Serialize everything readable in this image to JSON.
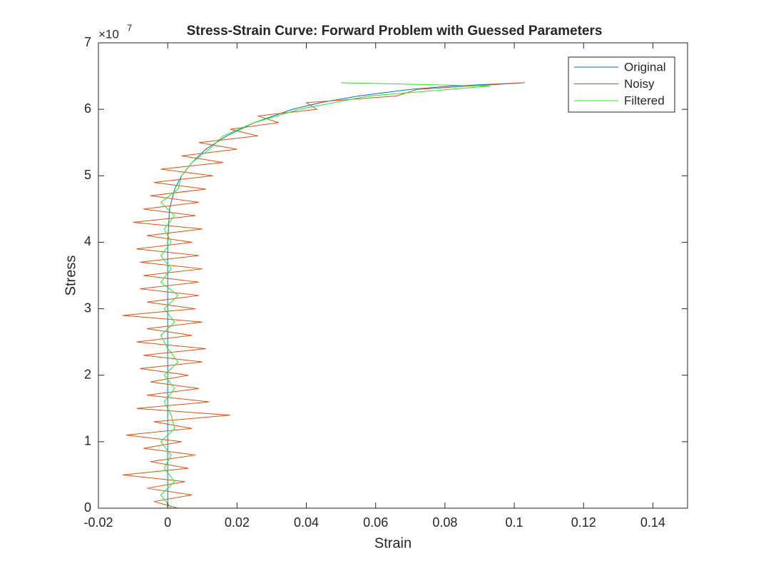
{
  "chart_data": {
    "type": "line",
    "title": "Stress-Strain Curve: Forward Problem with Guessed Parameters",
    "x_label": "Strain",
    "y_label": "Stress",
    "y_multiplier": {
      "base": "×10",
      "exponent": "7"
    },
    "xlim": [
      -0.02,
      0.15
    ],
    "ylim": [
      0,
      7
    ],
    "xticks": [
      -0.02,
      0,
      0.02,
      0.04,
      0.06,
      0.08,
      0.1,
      0.12,
      0.14
    ],
    "yticks": [
      0,
      1,
      2,
      3,
      4,
      5,
      6,
      7
    ],
    "legend": "top-right",
    "series": [
      {
        "name": "Original",
        "color": "#0072bd",
        "x": [
          0,
          0,
          0,
          0,
          0,
          0,
          0,
          0,
          0,
          0.0005,
          0.002,
          0.004,
          0.007,
          0.011,
          0.017,
          0.025,
          0.036,
          0.044,
          0.055,
          0.07,
          0.082,
          0.103
        ],
        "y": [
          0,
          0.5,
          1,
          1.5,
          2,
          2.5,
          3,
          3.5,
          4,
          4.5,
          4.8,
          5.0,
          5.2,
          5.4,
          5.6,
          5.8,
          6.0,
          6.1,
          6.2,
          6.3,
          6.35,
          6.4
        ]
      },
      {
        "name": "Noisy",
        "color": "#d95319",
        "x": [
          0.003,
          -0.004,
          0.007,
          -0.006,
          0.005,
          -0.013,
          0.006,
          -0.005,
          0.008,
          -0.007,
          0.004,
          -0.012,
          0.007,
          -0.004,
          0.018,
          -0.009,
          0.012,
          -0.006,
          0.009,
          -0.005,
          0.006,
          -0.008,
          0.01,
          -0.007,
          0.011,
          -0.009,
          0.007,
          -0.006,
          0.01,
          -0.013,
          0.008,
          -0.006,
          0.009,
          -0.008,
          0.009,
          -0.007,
          0.01,
          -0.008,
          0.009,
          -0.009,
          0.007,
          -0.006,
          0.01,
          -0.01,
          0.008,
          -0.007,
          0.009,
          -0.005,
          0.011,
          -0.004,
          0.013,
          -0.002,
          0.016,
          0.004,
          0.02,
          0.009,
          0.026,
          0.018,
          0.032,
          0.026,
          0.043,
          0.04,
          0.066,
          0.072,
          0.103
        ],
        "y": [
          0,
          0.1,
          0.2,
          0.3,
          0.4,
          0.5,
          0.6,
          0.7,
          0.8,
          0.9,
          1.0,
          1.1,
          1.2,
          1.3,
          1.4,
          1.5,
          1.6,
          1.7,
          1.8,
          1.9,
          2.0,
          2.1,
          2.2,
          2.3,
          2.4,
          2.5,
          2.6,
          2.7,
          2.8,
          2.9,
          3.0,
          3.1,
          3.2,
          3.3,
          3.4,
          3.5,
          3.6,
          3.7,
          3.8,
          3.9,
          4.0,
          4.1,
          4.2,
          4.3,
          4.4,
          4.5,
          4.6,
          4.7,
          4.8,
          4.9,
          5.0,
          5.1,
          5.2,
          5.3,
          5.4,
          5.5,
          5.6,
          5.7,
          5.8,
          5.9,
          6.0,
          6.1,
          6.2,
          6.3,
          6.4
        ]
      },
      {
        "name": "Filtered",
        "color": "#2ee02e",
        "x": [
          0.001,
          -0.002,
          0.002,
          -0.001,
          0.001,
          -0.002,
          0.002,
          0.001,
          -0.001,
          0.002,
          -0.001,
          0.003,
          0,
          -0.002,
          0.002,
          -0.001,
          0.003,
          -0.002,
          0.001,
          -0.002,
          0.001,
          -0.001,
          0.002,
          -0.002,
          0.003,
          0.004,
          0.007,
          0.012,
          0.016,
          0.025,
          0.038,
          0.058,
          0.093,
          0.05
        ],
        "y": [
          0,
          0.2,
          0.4,
          0.6,
          0.8,
          1.0,
          1.2,
          1.4,
          1.6,
          1.8,
          2.0,
          2.2,
          2.4,
          2.6,
          2.8,
          3.0,
          3.2,
          3.4,
          3.6,
          3.8,
          4.0,
          4.2,
          4.4,
          4.6,
          4.8,
          5.0,
          5.2,
          5.4,
          5.6,
          5.8,
          6.0,
          6.2,
          6.35,
          6.4
        ]
      }
    ]
  }
}
